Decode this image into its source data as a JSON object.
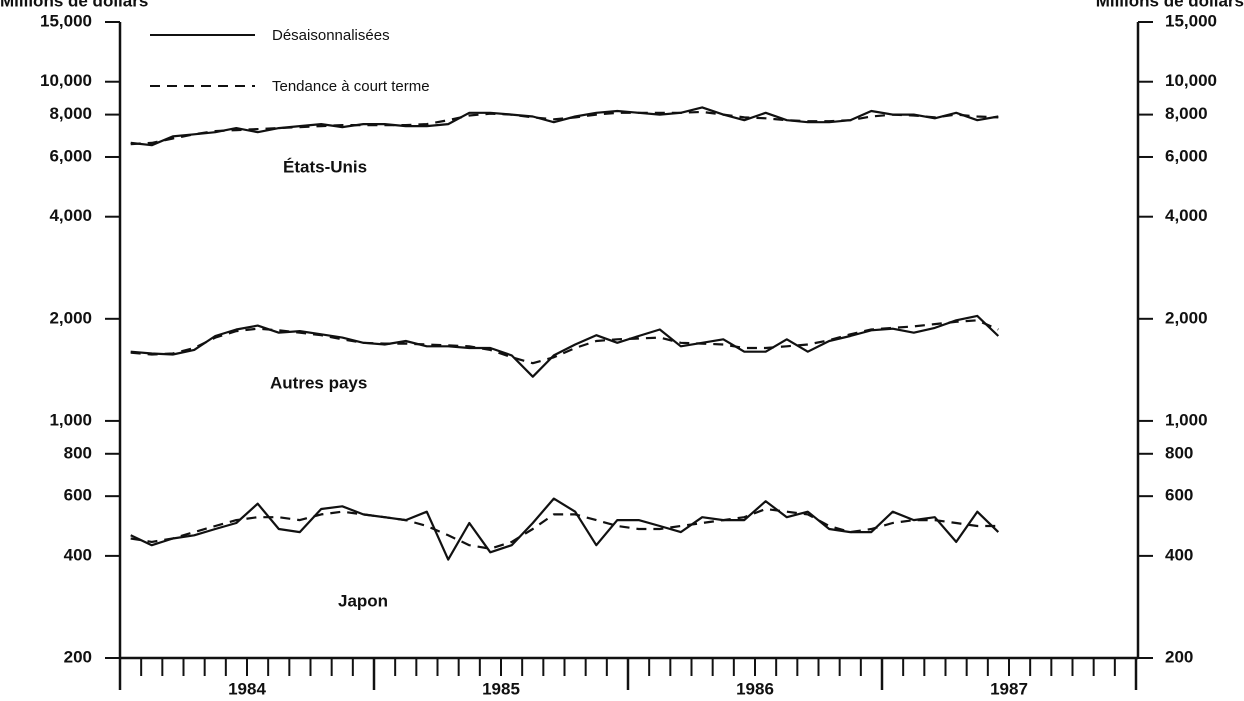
{
  "chart_data": {
    "type": "line",
    "ylabel": "Millions de dollars",
    "yscale": "log",
    "ylim": [
      200,
      15000
    ],
    "yticks": [
      200,
      400,
      600,
      800,
      {
        "value": 1000,
        "label": "1,000"
      },
      {
        "value": 2000,
        "label": "2,000"
      },
      {
        "value": 4000,
        "label": "4,000"
      },
      {
        "value": 6000,
        "label": "6,000"
      },
      {
        "value": 8000,
        "label": "8,000"
      },
      {
        "value": 10000,
        "label": "10,000"
      },
      {
        "value": 15000,
        "label": "15,000"
      }
    ],
    "xlim": [
      1984,
      1988
    ],
    "xticks": [
      {
        "value": 1984.5,
        "label": "1984"
      },
      {
        "value": 1985.5,
        "label": "1985"
      },
      {
        "value": 1986.5,
        "label": "1986"
      },
      {
        "value": 1987.5,
        "label": "1987"
      }
    ],
    "legend": [
      {
        "label": "Désaisonnalisées",
        "dash": "solid"
      },
      {
        "label": "Tendance à court terme",
        "dash": "dashed"
      }
    ],
    "color": "#111",
    "x": [
      1984.042,
      1984.125,
      1984.208,
      1984.292,
      1984.375,
      1984.458,
      1984.542,
      1984.625,
      1984.708,
      1984.792,
      1984.875,
      1984.958,
      1985.042,
      1985.125,
      1985.208,
      1985.292,
      1985.375,
      1985.458,
      1985.542,
      1985.625,
      1985.708,
      1985.792,
      1985.875,
      1985.958,
      1986.042,
      1986.125,
      1986.208,
      1986.292,
      1986.375,
      1986.458,
      1986.542,
      1986.625,
      1986.708,
      1986.792,
      1986.875,
      1986.958,
      1987.042,
      1987.125,
      1987.208,
      1987.292,
      1987.375,
      1987.458
    ],
    "series": [
      {
        "name": "États-Unis",
        "values": [
          6600,
          6500,
          6900,
          7000,
          7100,
          7300,
          7100,
          7300,
          7400,
          7500,
          7350,
          7500,
          7500,
          7400,
          7400,
          7500,
          8100,
          8100,
          8000,
          7900,
          7600,
          7900,
          8100,
          8200,
          8100,
          8000,
          8100,
          8400,
          8000,
          7700,
          8100,
          7700,
          7600,
          7600,
          7700,
          8200,
          8000,
          8000,
          7800,
          8100,
          7700,
          7900
        ],
        "trend": [
          6550,
          6600,
          6800,
          7000,
          7150,
          7200,
          7250,
          7300,
          7350,
          7400,
          7450,
          7450,
          7450,
          7450,
          7500,
          7700,
          7950,
          8050,
          8000,
          7850,
          7750,
          7850,
          8000,
          8100,
          8100,
          8100,
          8100,
          8150,
          8000,
          7850,
          7800,
          7700,
          7650,
          7650,
          7700,
          7900,
          8000,
          7950,
          7850,
          8000,
          7900,
          7850
        ]
      },
      {
        "name": "Autres pays",
        "values": [
          1600,
          1580,
          1570,
          1620,
          1780,
          1860,
          1910,
          1820,
          1840,
          1800,
          1760,
          1700,
          1680,
          1720,
          1660,
          1660,
          1640,
          1640,
          1560,
          1350,
          1560,
          1680,
          1790,
          1700,
          1780,
          1860,
          1660,
          1700,
          1740,
          1600,
          1600,
          1740,
          1600,
          1720,
          1780,
          1850,
          1870,
          1820,
          1880,
          1980,
          2040,
          1780
        ],
        "trend": [
          1590,
          1570,
          1580,
          1640,
          1760,
          1840,
          1870,
          1850,
          1820,
          1790,
          1740,
          1700,
          1690,
          1690,
          1680,
          1670,
          1660,
          1620,
          1540,
          1480,
          1540,
          1640,
          1720,
          1740,
          1750,
          1760,
          1700,
          1690,
          1680,
          1640,
          1640,
          1660,
          1680,
          1730,
          1800,
          1860,
          1880,
          1900,
          1930,
          1960,
          1980,
          1860
        ]
      },
      {
        "name": "Japon",
        "values": [
          460,
          430,
          450,
          460,
          480,
          500,
          570,
          480,
          470,
          550,
          560,
          530,
          520,
          510,
          540,
          390,
          500,
          410,
          430,
          500,
          590,
          540,
          430,
          510,
          510,
          490,
          470,
          520,
          510,
          510,
          580,
          520,
          540,
          480,
          470,
          470,
          540,
          510,
          520,
          440,
          540,
          470
        ],
        "trend": [
          450,
          440,
          450,
          470,
          490,
          510,
          520,
          520,
          510,
          530,
          540,
          530,
          520,
          510,
          490,
          460,
          430,
          420,
          440,
          480,
          530,
          530,
          510,
          490,
          480,
          480,
          490,
          500,
          510,
          520,
          550,
          540,
          530,
          490,
          470,
          480,
          500,
          510,
          510,
          500,
          490,
          490
        ]
      }
    ]
  }
}
